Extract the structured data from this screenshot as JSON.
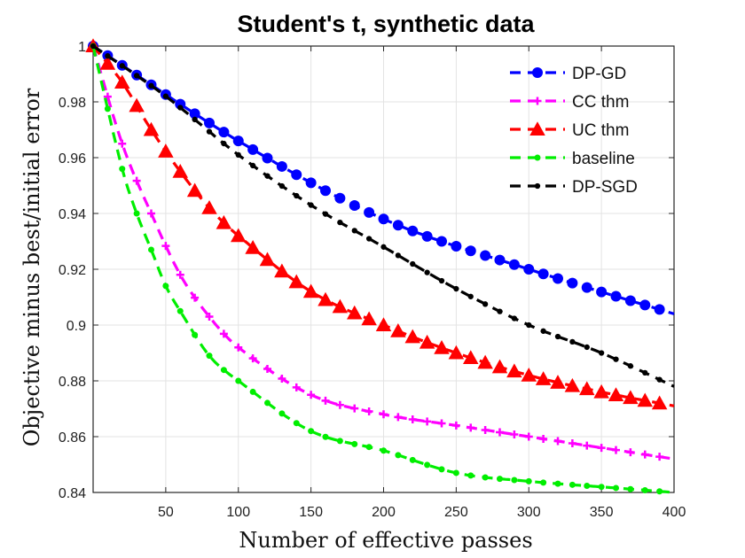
{
  "chart_data": {
    "type": "line",
    "title": "Student's t, synthetic data",
    "xlabel": "Number of effective passes",
    "ylabel": "Objective minus best/initial error",
    "xlim": [
      0,
      400
    ],
    "ylim": [
      0.84,
      1.0
    ],
    "xticks": [
      50,
      100,
      150,
      200,
      250,
      300,
      350,
      400
    ],
    "xtick_labels": [
      "50",
      "100",
      "150",
      "200",
      "250",
      "300",
      "350",
      "400"
    ],
    "yticks": [
      0.84,
      0.86,
      0.88,
      0.9,
      0.92,
      0.94,
      0.96,
      0.98,
      1.0
    ],
    "ytick_labels": [
      "0.84",
      "0.86",
      "0.88",
      "0.9",
      "0.92",
      "0.94",
      "0.96",
      "0.98",
      "1"
    ],
    "grid": true,
    "legend_position": "top-right",
    "series": [
      {
        "name": "DP-GD",
        "color": "#0000ff",
        "marker": "circle",
        "points": [
          [
            0,
            1.0
          ],
          [
            100,
            0.966
          ],
          [
            200,
            0.938
          ],
          [
            300,
            0.92
          ],
          [
            400,
            0.904
          ]
        ]
      },
      {
        "name": "CC thm",
        "color": "#ff00ff",
        "marker": "plus",
        "points": [
          [
            0,
            1.0
          ],
          [
            20,
            0.965
          ],
          [
            40,
            0.94
          ],
          [
            60,
            0.918
          ],
          [
            80,
            0.903
          ],
          [
            100,
            0.892
          ],
          [
            150,
            0.875
          ],
          [
            200,
            0.868
          ],
          [
            250,
            0.864
          ],
          [
            300,
            0.86
          ],
          [
            350,
            0.856
          ],
          [
            400,
            0.852
          ]
        ]
      },
      {
        "name": "UC thm",
        "color": "#ff0000",
        "marker": "triangle",
        "points": [
          [
            0,
            1.0
          ],
          [
            20,
            0.987
          ],
          [
            40,
            0.97
          ],
          [
            60,
            0.955
          ],
          [
            80,
            0.942
          ],
          [
            100,
            0.932
          ],
          [
            150,
            0.912
          ],
          [
            200,
            0.9
          ],
          [
            250,
            0.89
          ],
          [
            300,
            0.882
          ],
          [
            350,
            0.876
          ],
          [
            400,
            0.871
          ]
        ]
      },
      {
        "name": "baseline",
        "color": "#00ee00",
        "marker": "dot",
        "points": [
          [
            0,
            1.0
          ],
          [
            20,
            0.956
          ],
          [
            30,
            0.94
          ],
          [
            40,
            0.927
          ],
          [
            50,
            0.914
          ],
          [
            60,
            0.905
          ],
          [
            80,
            0.889
          ],
          [
            100,
            0.88
          ],
          [
            150,
            0.862
          ],
          [
            200,
            0.855
          ],
          [
            250,
            0.847
          ],
          [
            300,
            0.844
          ],
          [
            350,
            0.842
          ],
          [
            400,
            0.84
          ]
        ]
      },
      {
        "name": "DP-SGD",
        "color": "#000000",
        "marker": "dot",
        "points": [
          [
            0,
            1.0
          ],
          [
            50,
            0.982
          ],
          [
            100,
            0.961
          ],
          [
            150,
            0.943
          ],
          [
            200,
            0.928
          ],
          [
            250,
            0.913
          ],
          [
            300,
            0.9
          ],
          [
            350,
            0.89
          ],
          [
            400,
            0.878
          ]
        ]
      }
    ]
  }
}
